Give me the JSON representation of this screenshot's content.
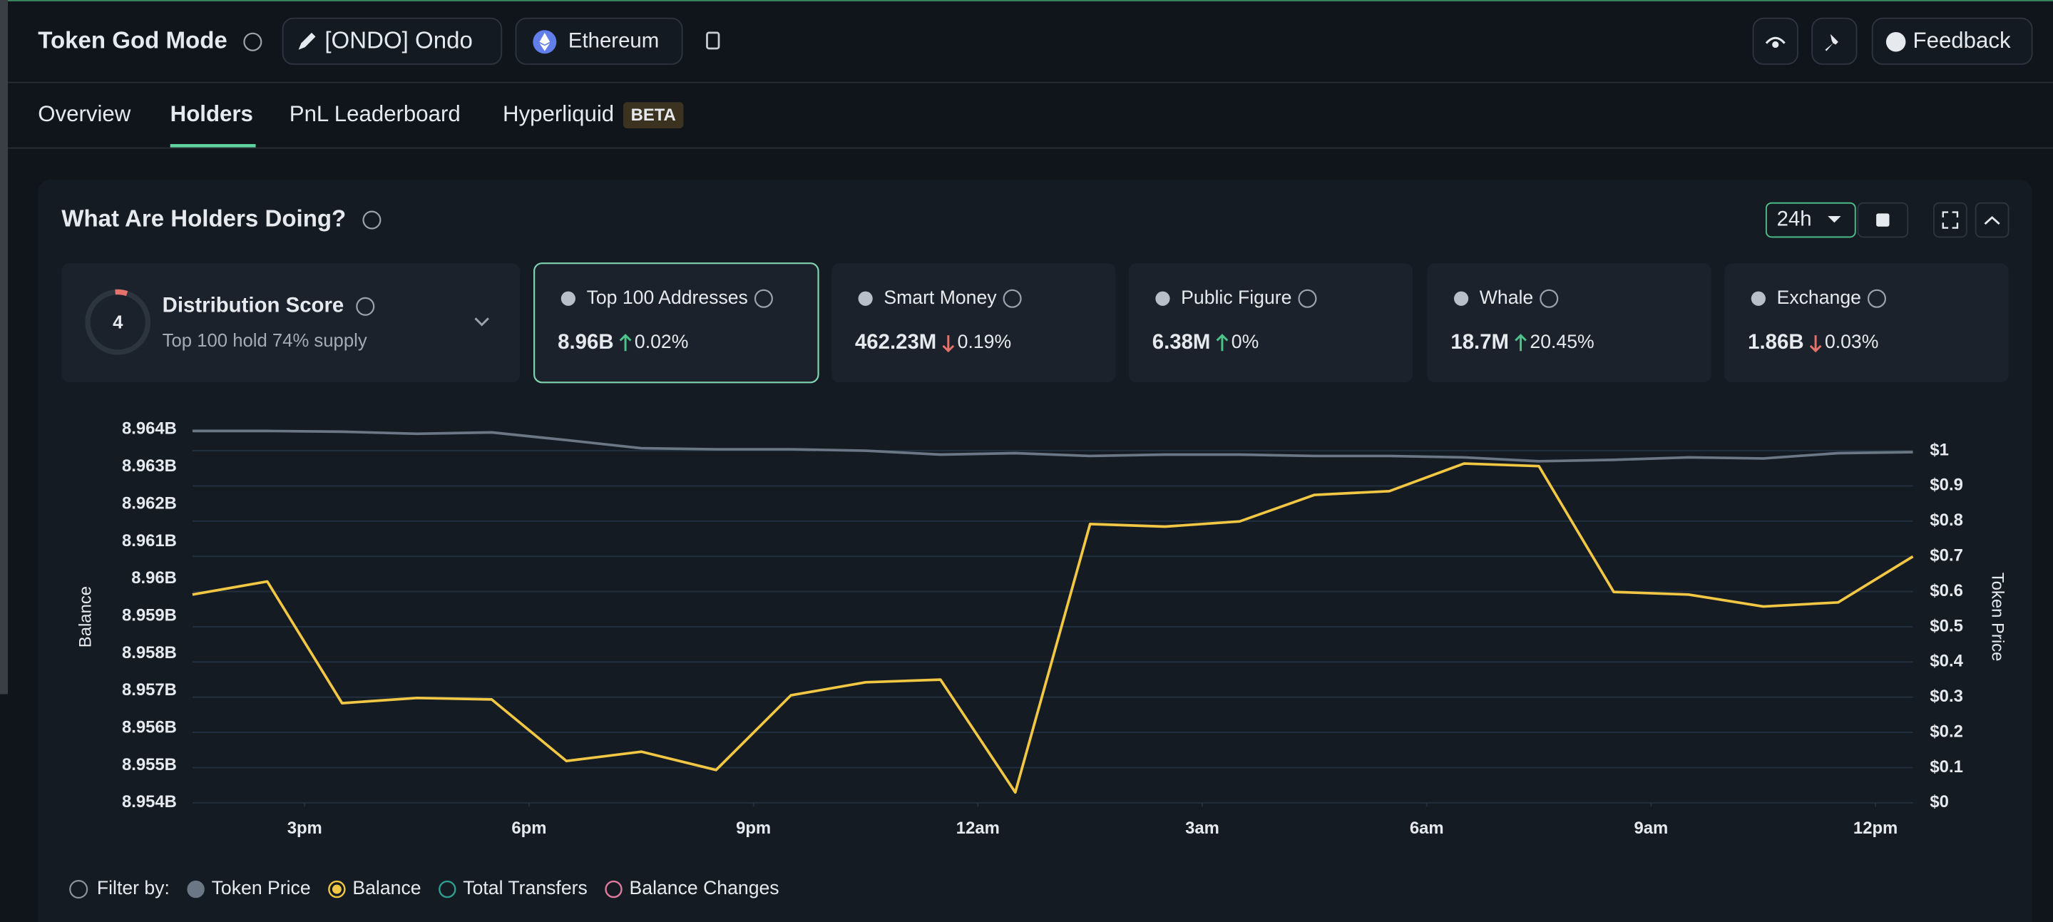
{
  "header": {
    "title": "Token God Mode",
    "token": "[ONDO] Ondo",
    "chain": "Ethereum",
    "feedback": "Feedback"
  },
  "tabs": {
    "items": [
      "Overview",
      "Holders",
      "PnL Leaderboard",
      "Hyperliquid"
    ],
    "active": 1,
    "badge": "BETA"
  },
  "panel": {
    "title": "What Are Holders Doing?",
    "timeframe": "24h"
  },
  "distribution": {
    "score": 4,
    "title": "Distribution Score",
    "subtitle": "Top 100 hold 74% supply"
  },
  "cards": [
    {
      "label": "Top 100 Addresses",
      "value": "8.96B",
      "change": "0.02%",
      "direction": "up",
      "selected": true
    },
    {
      "label": "Smart Money",
      "value": "462.23M",
      "change": "0.19%",
      "direction": "down",
      "selected": false
    },
    {
      "label": "Public Figure",
      "value": "6.38M",
      "change": "0%",
      "direction": "up",
      "selected": false
    },
    {
      "label": "Whale",
      "value": "18.7M",
      "change": "20.45%",
      "direction": "up",
      "selected": false
    },
    {
      "label": "Exchange",
      "value": "1.86B",
      "change": "0.03%",
      "direction": "down",
      "selected": false
    }
  ],
  "chart_data": {
    "type": "line",
    "x": [
      13.5,
      14.5,
      15.5,
      16.5,
      17.5,
      18.5,
      19.5,
      20.5,
      21.5,
      22.5,
      23.5,
      24.5,
      25.5,
      26.5,
      27.5,
      28.5,
      29.5,
      30.5,
      31.5,
      32.5,
      33.5,
      34.5,
      35.5,
      36.5
    ],
    "xlim": [
      13.5,
      36.5
    ],
    "xticks": [
      {
        "value": 15,
        "label": "3pm"
      },
      {
        "value": 18,
        "label": "6pm"
      },
      {
        "value": 21,
        "label": "9pm"
      },
      {
        "value": 24,
        "label": "12am"
      },
      {
        "value": 27,
        "label": "3am"
      },
      {
        "value": 30,
        "label": "6am"
      },
      {
        "value": 33,
        "label": "9am"
      },
      {
        "value": 36,
        "label": "12pm"
      }
    ],
    "ylabel": "Balance",
    "ylim": [
      8.954,
      8.964
    ],
    "yticks": [
      {
        "value": 8.954,
        "label": "8.954B"
      },
      {
        "value": 8.955,
        "label": "8.955B"
      },
      {
        "value": 8.956,
        "label": "8.956B"
      },
      {
        "value": 8.957,
        "label": "8.957B"
      },
      {
        "value": 8.958,
        "label": "8.958B"
      },
      {
        "value": 8.959,
        "label": "8.959B"
      },
      {
        "value": 8.96,
        "label": "8.96B"
      },
      {
        "value": 8.961,
        "label": "8.961B"
      },
      {
        "value": 8.962,
        "label": "8.962B"
      },
      {
        "value": 8.963,
        "label": "8.963B"
      },
      {
        "value": 8.964,
        "label": "8.964B"
      }
    ],
    "y2label": "Token Price",
    "y2lim": [
      0,
      1.06
    ],
    "y2ticks": [
      {
        "value": 0,
        "label": "$0"
      },
      {
        "value": 0.1,
        "label": "$0.1"
      },
      {
        "value": 0.2,
        "label": "$0.2"
      },
      {
        "value": 0.3,
        "label": "$0.3"
      },
      {
        "value": 0.4,
        "label": "$0.4"
      },
      {
        "value": 0.5,
        "label": "$0.5"
      },
      {
        "value": 0.6,
        "label": "$0.6"
      },
      {
        "value": 0.7,
        "label": "$0.7"
      },
      {
        "value": 0.8,
        "label": "$0.8"
      },
      {
        "value": 0.9,
        "label": "$0.9"
      },
      {
        "value": 1,
        "label": "$1"
      }
    ],
    "grid": true,
    "grid_axis": "y2",
    "series": [
      {
        "name": "Token Price",
        "color": "#6b7785",
        "axis": "y2",
        "legend_style": "filled",
        "values": [
          1.056,
          1.056,
          1.054,
          1.048,
          1.052,
          1.03,
          1.007,
          1.004,
          1.004,
          1.0,
          0.989,
          0.993,
          0.985,
          0.989,
          0.989,
          0.985,
          0.985,
          0.981,
          0.97,
          0.974,
          0.981,
          0.978,
          0.993,
          0.996
        ]
      },
      {
        "name": "Balance",
        "color": "#f2c744",
        "legend_style": "dot",
        "values": [
          8.95958,
          8.95993,
          8.95667,
          8.95681,
          8.95677,
          8.95512,
          8.95537,
          8.95488,
          8.95688,
          8.95723,
          8.9573,
          8.95428,
          8.96147,
          8.9614,
          8.96154,
          8.96225,
          8.96235,
          8.96309,
          8.96302,
          8.95965,
          8.95958,
          8.95926,
          8.95937,
          8.9606
        ]
      }
    ],
    "legend_label": "Filter by:",
    "extra_legend": [
      {
        "name": "Total Transfers",
        "color": "#2f9c8f"
      },
      {
        "name": "Balance Changes",
        "color": "#e07a9f"
      }
    ]
  }
}
